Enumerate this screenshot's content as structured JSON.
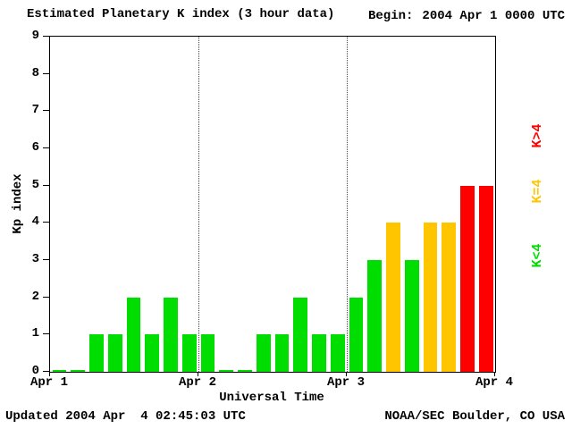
{
  "header": {
    "title": "Estimated Planetary K index (3 hour data)",
    "begin_label": "Begin:",
    "begin_value": "2004 Apr 1 0000 UTC"
  },
  "footer": {
    "updated": "Updated 2004 Apr  4 02:45:03 UTC",
    "credit": "NOAA/SEC Boulder, CO USA"
  },
  "legend": [
    {
      "label": "K>4",
      "color": "#ff0000"
    },
    {
      "label": "K=4",
      "color": "#ffc600"
    },
    {
      "label": "K<4",
      "color": "#00dd00"
    }
  ],
  "chart_data": {
    "type": "bar",
    "title": "Estimated Planetary K index (3 hour data)",
    "xlabel": "Universal Time",
    "ylabel": "Kp index",
    "ylim": [
      0,
      9
    ],
    "yticks": [
      0,
      1,
      2,
      3,
      4,
      5,
      6,
      7,
      8,
      9
    ],
    "x_tick_labels": [
      "Apr 1",
      "Apr 2",
      "Apr 3",
      "Apr 4"
    ],
    "bar_interval_hours": 3,
    "values": [
      0,
      0,
      1,
      1,
      2,
      1,
      2,
      1,
      1,
      0,
      0,
      1,
      1,
      2,
      1,
      1,
      2,
      3,
      4,
      3,
      4,
      4,
      5,
      5
    ],
    "colors": {
      "lt4": "#00dd00",
      "eq4": "#ffc600",
      "gt4": "#ff0000"
    },
    "grid": "dotted vertical lines at day boundaries",
    "legend_position": "right, rotated 90deg"
  }
}
